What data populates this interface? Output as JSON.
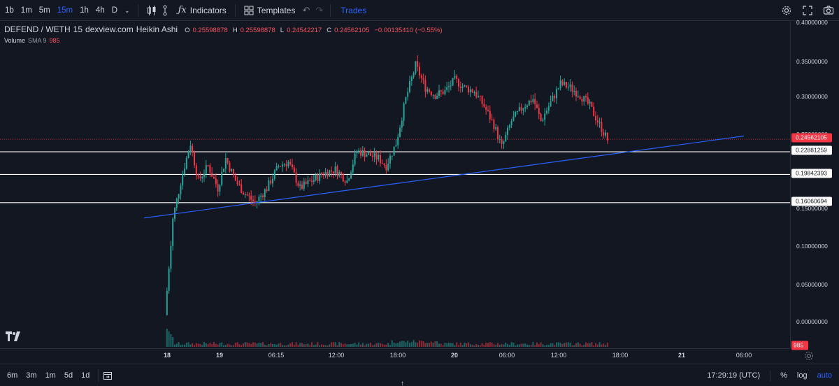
{
  "toolbar": {
    "timeframes": [
      "1b",
      "1m",
      "5m",
      "15m",
      "1h",
      "4h",
      "D"
    ],
    "active_timeframe": "15m",
    "indicators_label": "Indicators",
    "templates_label": "Templates",
    "trades_label": "Trades"
  },
  "legend": {
    "symbol": "DEFEND / WETH",
    "interval": "15",
    "source": "dexview.com",
    "chart_style": "Heikin Ashi",
    "o_label": "O",
    "o_value": "0.25598878",
    "h_label": "H",
    "h_value": "0.25598878",
    "l_label": "L",
    "l_value": "0.24542217",
    "c_label": "C",
    "c_value": "0.24562105",
    "change": "−0.00135410 (−0.55%)",
    "volume_label": "Volume",
    "volume_sma": "SMA 9",
    "volume_value": "985"
  },
  "price_axis": {
    "ticks": [
      "0.40000000",
      "0.35000000",
      "0.30000000",
      "0.25000000",
      "0.15000000",
      "0.10000000",
      "0.05000000",
      "0.00000000"
    ],
    "last_price_tag": "0.24562105",
    "line_tags": [
      "0.22881259",
      "0.19842393",
      "0.16060694"
    ],
    "volume_tag": "985"
  },
  "time_axis": {
    "ticks": [
      "18",
      "19",
      "06:15",
      "12:00",
      "18:00",
      "20",
      "06:00",
      "12:00",
      "18:00",
      "21",
      "06:00"
    ]
  },
  "bottombar": {
    "ranges": [
      "6m",
      "3m",
      "1m",
      "5d",
      "1d"
    ],
    "clock": "17:29:19 (UTC)",
    "percent_label": "%",
    "log_label": "log",
    "auto_label": "auto"
  },
  "colors": {
    "background": "#131722",
    "up": "#26a69a",
    "down": "#f23645",
    "trendline": "#2962ff",
    "hline": "#ffffff",
    "accent": "#2962ff"
  },
  "chart_data": {
    "type": "candlestick",
    "style": "Heikin Ashi",
    "y_range": [
      -0.03,
      0.4
    ],
    "horizontal_lines": [
      0.22881259,
      0.19842393,
      0.16060694
    ],
    "last_price": 0.24562105,
    "trendline": {
      "start": {
        "time": "18 06:00",
        "price": 0.14
      },
      "end": {
        "time": "21 06:00",
        "price": 0.25
      }
    },
    "path_anchors": [
      {
        "t": 0,
        "v": 0.01
      },
      {
        "t": 4,
        "v": 0.14
      },
      {
        "t": 9,
        "v": 0.2
      },
      {
        "t": 13,
        "v": 0.24
      },
      {
        "t": 17,
        "v": 0.19
      },
      {
        "t": 22,
        "v": 0.21
      },
      {
        "t": 27,
        "v": 0.18
      },
      {
        "t": 31,
        "v": 0.22
      },
      {
        "t": 36,
        "v": 0.19
      },
      {
        "t": 40,
        "v": 0.175
      },
      {
        "t": 46,
        "v": 0.16
      },
      {
        "t": 52,
        "v": 0.18
      },
      {
        "t": 58,
        "v": 0.21
      },
      {
        "t": 63,
        "v": 0.215
      },
      {
        "t": 69,
        "v": 0.18
      },
      {
        "t": 75,
        "v": 0.19
      },
      {
        "t": 81,
        "v": 0.2
      },
      {
        "t": 87,
        "v": 0.205
      },
      {
        "t": 93,
        "v": 0.19
      },
      {
        "t": 98,
        "v": 0.23
      },
      {
        "t": 104,
        "v": 0.225
      },
      {
        "t": 109,
        "v": 0.22
      },
      {
        "t": 113,
        "v": 0.21
      },
      {
        "t": 118,
        "v": 0.24
      },
      {
        "t": 123,
        "v": 0.3
      },
      {
        "t": 128,
        "v": 0.345
      },
      {
        "t": 133,
        "v": 0.315
      },
      {
        "t": 138,
        "v": 0.305
      },
      {
        "t": 143,
        "v": 0.31
      },
      {
        "t": 148,
        "v": 0.325
      },
      {
        "t": 153,
        "v": 0.315
      },
      {
        "t": 158,
        "v": 0.31
      },
      {
        "t": 163,
        "v": 0.29
      },
      {
        "t": 168,
        "v": 0.265
      },
      {
        "t": 172,
        "v": 0.235
      },
      {
        "t": 177,
        "v": 0.27
      },
      {
        "t": 183,
        "v": 0.29
      },
      {
        "t": 188,
        "v": 0.3
      },
      {
        "t": 192,
        "v": 0.27
      },
      {
        "t": 197,
        "v": 0.295
      },
      {
        "t": 202,
        "v": 0.32
      },
      {
        "t": 207,
        "v": 0.315
      },
      {
        "t": 212,
        "v": 0.305
      },
      {
        "t": 217,
        "v": 0.29
      },
      {
        "t": 222,
        "v": 0.265
      },
      {
        "t": 226,
        "v": 0.245
      }
    ],
    "candle_count": 227,
    "volume_last": 985
  }
}
